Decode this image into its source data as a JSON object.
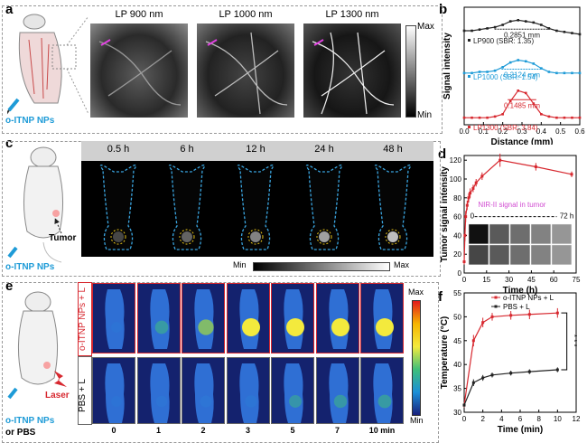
{
  "panels": {
    "a": "a",
    "b": "b",
    "c": "c",
    "d": "d",
    "e": "e",
    "f": "f"
  },
  "panel_a": {
    "labels": [
      "LP 900 nm",
      "LP 1000 nm",
      "LP 1300 nm"
    ],
    "injection": "o-ITNP NPs",
    "scale_max": "Max",
    "scale_min": "Min"
  },
  "panel_c": {
    "times": [
      "0.5 h",
      "6 h",
      "12 h",
      "24 h",
      "48 h"
    ],
    "injection": "o-ITNP NPs",
    "tumor": "Tumor",
    "scale_min": "Min",
    "scale_max": "Max"
  },
  "panel_e": {
    "row1": "o-ITNP NPs + L",
    "row2": "PBS + L",
    "times": [
      "0",
      "1",
      "2",
      "3",
      "5",
      "7",
      "10 min"
    ],
    "injection_line1": "o-ITNP NPs",
    "injection_line2": "or PBS",
    "laser": "Laser",
    "scale_max": "Max",
    "scale_min": "Min"
  },
  "chart_data": [
    {
      "id": "b",
      "type": "line",
      "xlabel": "Distance (mm)",
      "ylabel": "Signal intensity",
      "xlim": [
        0,
        0.6
      ],
      "xticks": [
        "0.0",
        "0.1",
        "0.2",
        "0.3",
        "0.4",
        "0.5",
        "0.6"
      ],
      "series": [
        {
          "name": "LP900 (SBR: 1.35)",
          "color": "#222222",
          "fwhm": "0.2851 mm",
          "x": [
            0,
            0.04,
            0.08,
            0.12,
            0.16,
            0.2,
            0.24,
            0.28,
            0.32,
            0.36,
            0.4,
            0.44,
            0.48,
            0.52,
            0.56,
            0.6
          ],
          "y": [
            0.8,
            0.8,
            0.81,
            0.82,
            0.83,
            0.85,
            0.88,
            0.89,
            0.88,
            0.87,
            0.85,
            0.82,
            0.8,
            0.79,
            0.78,
            0.77
          ]
        },
        {
          "name": "LP1000 (SBR: 1.54)",
          "color": "#1e9bd7",
          "fwhm": "0.2124 mm",
          "x": [
            0,
            0.04,
            0.08,
            0.12,
            0.16,
            0.2,
            0.24,
            0.28,
            0.32,
            0.36,
            0.4,
            0.44,
            0.48,
            0.52,
            0.56,
            0.6
          ],
          "y": [
            0.44,
            0.44,
            0.45,
            0.45,
            0.46,
            0.49,
            0.53,
            0.55,
            0.54,
            0.52,
            0.48,
            0.45,
            0.44,
            0.44,
            0.44,
            0.44
          ]
        },
        {
          "name": "LP1300 (SBR: 3.84)",
          "color": "#d7282f",
          "fwhm": "0.1485 mm",
          "x": [
            0,
            0.04,
            0.08,
            0.12,
            0.16,
            0.2,
            0.24,
            0.28,
            0.32,
            0.36,
            0.4,
            0.44,
            0.48,
            0.52,
            0.56,
            0.6
          ],
          "y": [
            0.06,
            0.06,
            0.06,
            0.06,
            0.07,
            0.09,
            0.2,
            0.29,
            0.27,
            0.18,
            0.09,
            0.07,
            0.06,
            0.06,
            0.06,
            0.06
          ]
        }
      ]
    },
    {
      "id": "d",
      "type": "line",
      "xlabel": "Time (h)",
      "ylabel": "Tumor signal intensity",
      "xlim": [
        0,
        75
      ],
      "ylim": [
        0,
        125
      ],
      "xticks": [
        0,
        15,
        30,
        45,
        60,
        75
      ],
      "yticks": [
        0,
        20,
        40,
        60,
        80,
        100,
        120
      ],
      "annotation": "NIR-II signal in tumor",
      "range_start": "0",
      "range_end": "72 h",
      "series": [
        {
          "name": "",
          "color": "#d7282f",
          "x": [
            0,
            0.5,
            1,
            2,
            3,
            4,
            6,
            8,
            12,
            24,
            48,
            72
          ],
          "y": [
            12,
            40,
            60,
            72,
            80,
            85,
            90,
            96,
            103,
            120,
            113,
            105
          ],
          "err": [
            3,
            6,
            6,
            5,
            5,
            5,
            4,
            4,
            4,
            7,
            4,
            3
          ]
        }
      ]
    },
    {
      "id": "f",
      "type": "line",
      "xlabel": "Time (min)",
      "ylabel": "Temperature (°C)",
      "xlim": [
        0,
        12
      ],
      "ylim": [
        30,
        55
      ],
      "xticks": [
        0,
        2,
        4,
        6,
        8,
        10,
        12
      ],
      "yticks": [
        30,
        35,
        40,
        45,
        50,
        55
      ],
      "significance": "* * *",
      "series": [
        {
          "name": "o-ITNP NPs + L",
          "color": "#d7282f",
          "x": [
            0,
            1,
            2,
            3,
            5,
            7,
            10
          ],
          "y": [
            31.5,
            45,
            48.8,
            50,
            50.3,
            50.5,
            50.8
          ],
          "err": [
            0.5,
            1.2,
            1.0,
            0.8,
            0.9,
            1.0,
            1.0
          ]
        },
        {
          "name": "PBS + L",
          "color": "#222222",
          "x": [
            0,
            1,
            2,
            3,
            5,
            7,
            10
          ],
          "y": [
            31.5,
            36.2,
            37.2,
            37.8,
            38.2,
            38.5,
            38.9
          ],
          "err": [
            0.4,
            0.7,
            0.6,
            0.5,
            0.5,
            0.5,
            0.5
          ]
        }
      ]
    }
  ]
}
